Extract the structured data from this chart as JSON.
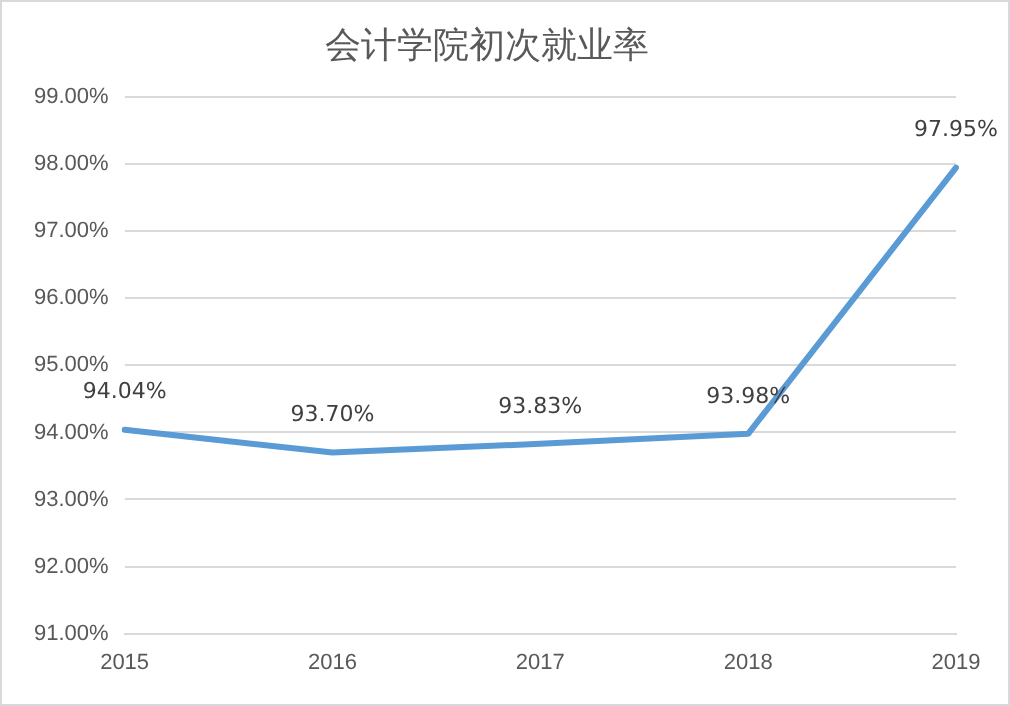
{
  "chart_data": {
    "type": "line",
    "title": "会计学院初次就业率",
    "categories": [
      "2015",
      "2016",
      "2017",
      "2018",
      "2019"
    ],
    "series": [
      {
        "color": "#5b9bd5",
        "values": [
          94.04,
          93.7,
          93.83,
          93.98,
          97.95
        ],
        "value_labels": [
          "94.04%",
          "93.70%",
          "93.83%",
          "93.98%",
          "97.95%"
        ]
      }
    ],
    "ylim": [
      91,
      99
    ],
    "yticks": [
      {
        "value": 91,
        "label": "91.00%"
      },
      {
        "value": 92,
        "label": "92.00%"
      },
      {
        "value": 93,
        "label": "93.00%"
      },
      {
        "value": 94,
        "label": "94.00%"
      },
      {
        "value": 95,
        "label": "95.00%"
      },
      {
        "value": 96,
        "label": "96.00%"
      },
      {
        "value": 97,
        "label": "97.00%"
      },
      {
        "value": 98,
        "label": "98.00%"
      },
      {
        "value": 99,
        "label": "99.00%"
      }
    ],
    "grid": "y",
    "legend": false,
    "marker": "none",
    "line_style": "solid"
  }
}
